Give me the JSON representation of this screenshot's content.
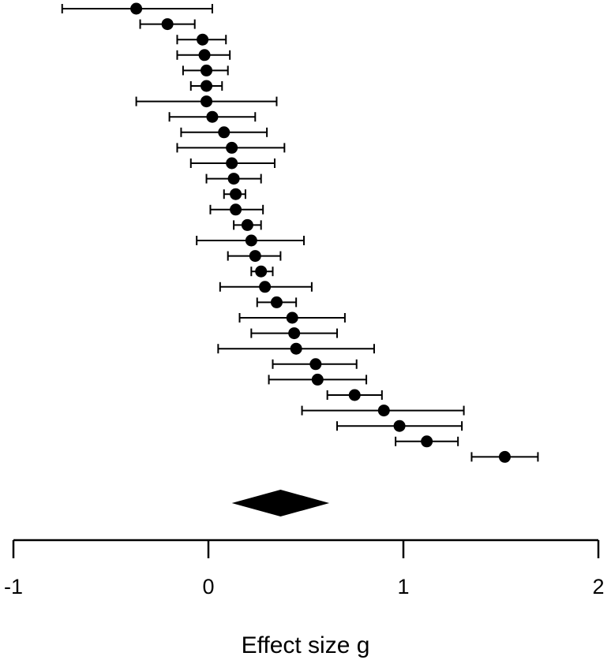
{
  "chart_data": {
    "type": "forest",
    "xlabel": "Effect size g",
    "xlim": [
      -1,
      2
    ],
    "ticks": [
      -1,
      0,
      1,
      2
    ],
    "tick_labels": [
      "-1",
      "0",
      "1",
      "2"
    ],
    "marker_color": "#000000",
    "studies": [
      {
        "g": -0.37,
        "lower": -0.75,
        "upper": 0.02
      },
      {
        "g": -0.21,
        "lower": -0.35,
        "upper": -0.07
      },
      {
        "g": -0.03,
        "lower": -0.16,
        "upper": 0.09
      },
      {
        "g": -0.02,
        "lower": -0.16,
        "upper": 0.11
      },
      {
        "g": -0.01,
        "lower": -0.13,
        "upper": 0.1
      },
      {
        "g": -0.01,
        "lower": -0.09,
        "upper": 0.07
      },
      {
        "g": -0.01,
        "lower": -0.37,
        "upper": 0.35
      },
      {
        "g": 0.02,
        "lower": -0.2,
        "upper": 0.24
      },
      {
        "g": 0.08,
        "lower": -0.14,
        "upper": 0.3
      },
      {
        "g": 0.12,
        "lower": -0.16,
        "upper": 0.39
      },
      {
        "g": 0.12,
        "lower": -0.09,
        "upper": 0.34
      },
      {
        "g": 0.13,
        "lower": -0.01,
        "upper": 0.27
      },
      {
        "g": 0.14,
        "lower": 0.08,
        "upper": 0.19
      },
      {
        "g": 0.14,
        "lower": 0.01,
        "upper": 0.28
      },
      {
        "g": 0.2,
        "lower": 0.13,
        "upper": 0.27
      },
      {
        "g": 0.22,
        "lower": -0.06,
        "upper": 0.49
      },
      {
        "g": 0.24,
        "lower": 0.1,
        "upper": 0.37
      },
      {
        "g": 0.27,
        "lower": 0.22,
        "upper": 0.33
      },
      {
        "g": 0.29,
        "lower": 0.06,
        "upper": 0.53
      },
      {
        "g": 0.35,
        "lower": 0.25,
        "upper": 0.45
      },
      {
        "g": 0.43,
        "lower": 0.16,
        "upper": 0.7
      },
      {
        "g": 0.44,
        "lower": 0.22,
        "upper": 0.66
      },
      {
        "g": 0.45,
        "lower": 0.05,
        "upper": 0.85
      },
      {
        "g": 0.55,
        "lower": 0.33,
        "upper": 0.76
      },
      {
        "g": 0.56,
        "lower": 0.31,
        "upper": 0.81
      },
      {
        "g": 0.75,
        "lower": 0.61,
        "upper": 0.89
      },
      {
        "g": 0.9,
        "lower": 0.48,
        "upper": 1.31
      },
      {
        "g": 0.98,
        "lower": 0.66,
        "upper": 1.3
      },
      {
        "g": 1.12,
        "lower": 0.96,
        "upper": 1.28
      },
      {
        "g": 1.52,
        "lower": 1.35,
        "upper": 1.69
      }
    ],
    "summary": {
      "g": 0.37,
      "lower": 0.12,
      "upper": 0.62
    }
  }
}
